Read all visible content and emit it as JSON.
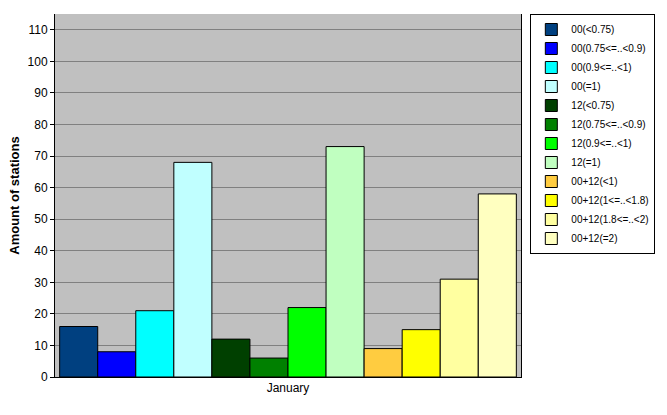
{
  "chart_data": {
    "type": "bar",
    "ylabel": "Amount of stations",
    "categories": [
      "January"
    ],
    "series": [
      {
        "name": "00(<0.75)",
        "color": "#004080",
        "values": [
          16
        ]
      },
      {
        "name": "00(0.75<=..<0.9)",
        "color": "#0000ff",
        "values": [
          8
        ]
      },
      {
        "name": "00(0.9<=..<1)",
        "color": "#00ffff",
        "values": [
          21
        ]
      },
      {
        "name": "00(=1)",
        "color": "#c0ffff",
        "values": [
          68
        ]
      },
      {
        "name": "12(<0.75)",
        "color": "#004000",
        "values": [
          12
        ]
      },
      {
        "name": "12(0.75<=..<0.9)",
        "color": "#008000",
        "values": [
          6
        ]
      },
      {
        "name": "12(0.9<=..<1)",
        "color": "#00ff00",
        "values": [
          22
        ]
      },
      {
        "name": "12(=1)",
        "color": "#c0ffc0",
        "values": [
          73
        ]
      },
      {
        "name": "00+12(<1)",
        "color": "#ffcc40",
        "values": [
          9
        ]
      },
      {
        "name": "00+12(1<=..<1.8)",
        "color": "#ffff00",
        "values": [
          15
        ]
      },
      {
        "name": "00+12(1.8<=..<2)",
        "color": "#ffffa0",
        "values": [
          31
        ]
      },
      {
        "name": "00+12(=2)",
        "color": "#ffffc0",
        "values": [
          58
        ]
      }
    ],
    "ylim": [
      0,
      115
    ],
    "yticks": [
      0,
      10,
      20,
      30,
      40,
      50,
      60,
      70,
      80,
      90,
      100,
      110
    ],
    "grid": true,
    "legend": "right"
  }
}
